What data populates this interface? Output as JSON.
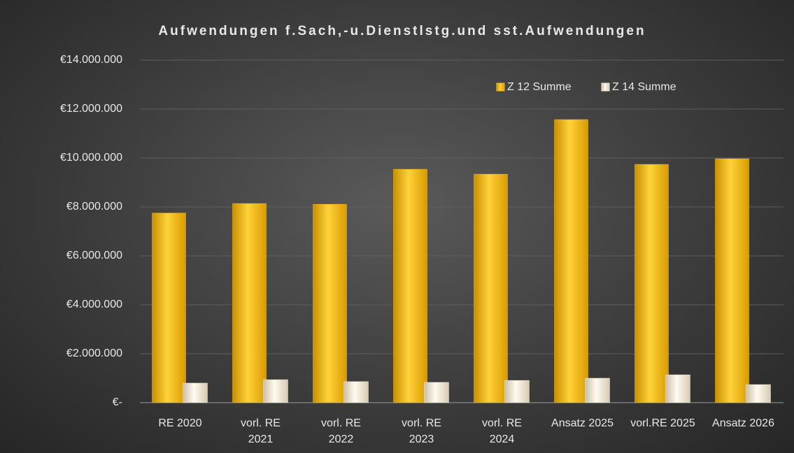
{
  "chart_data": {
    "type": "bar",
    "title": "Aufwendungen f.Sach,-u.Dienstlstg.und sst.Aufwendungen",
    "categories": [
      "RE 2020",
      "vorl. RE\n2021",
      "vorl. RE\n2022",
      "vorl. RE\n2023",
      "vorl. RE\n2024",
      "Ansatz 2025",
      "vorl.RE 2025",
      "Ansatz 2026"
    ],
    "series": [
      {
        "name": "Z 12 Summe",
        "color": "#f5bd12",
        "values": [
          7750000,
          8140000,
          8110000,
          9540000,
          9340000,
          11570000,
          9740000,
          9970000
        ]
      },
      {
        "name": "Z 14 Summe",
        "color": "#f2e6d2",
        "values": [
          800000,
          940000,
          860000,
          830000,
          910000,
          1000000,
          1140000,
          740000
        ]
      }
    ],
    "ylim": [
      0,
      14000000
    ],
    "yticks": [
      {
        "value": 0,
        "label": "€-"
      },
      {
        "value": 2000000,
        "label": "€2.000.000"
      },
      {
        "value": 4000000,
        "label": "€4.000.000"
      },
      {
        "value": 6000000,
        "label": "€6.000.000"
      },
      {
        "value": 8000000,
        "label": "€8.000.000"
      },
      {
        "value": 10000000,
        "label": "€10.000.000"
      },
      {
        "value": 12000000,
        "label": "€12.000.000"
      },
      {
        "value": 14000000,
        "label": "€14.000.000"
      }
    ],
    "grid": true,
    "legend": "top-right"
  }
}
